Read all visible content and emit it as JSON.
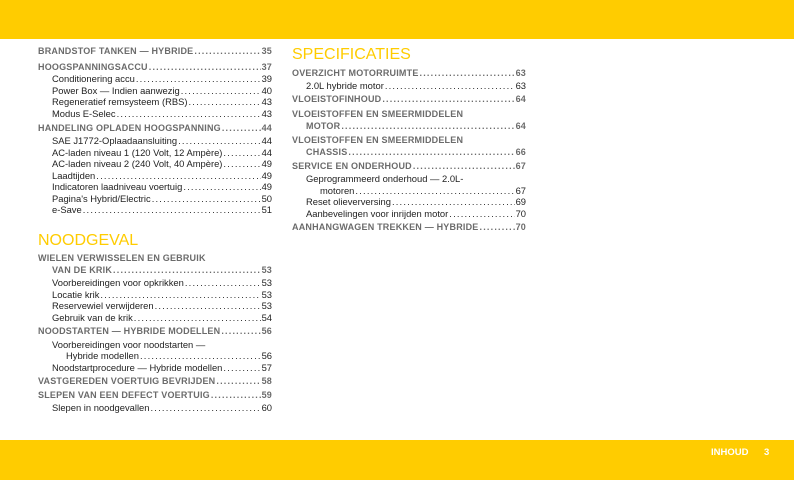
{
  "colors": {
    "accent": "#FFCC00"
  },
  "footer": {
    "label": "INHOUD",
    "page": "3"
  },
  "left": {
    "e": [
      {
        "t": "BRANDSTOF TANKEN — HYBRIDE",
        "p": "35"
      },
      {
        "t": "HOOGSPANNINGSACCU",
        "p": "37"
      },
      {
        "t": "Conditionering accu",
        "p": "39"
      },
      {
        "t": "Power Box — Indien aanwezig",
        "p": "40"
      },
      {
        "t": "Regeneratief remsysteem (RBS)",
        "p": "43"
      },
      {
        "t": "Modus E-Selec",
        "p": "43"
      },
      {
        "t": "HANDELING OPLADEN HOOGSPANNING",
        "p": "44"
      },
      {
        "t": "SAE J1772-Oplaadaansluiting",
        "p": "44"
      },
      {
        "t": "AC-laden niveau 1 (120 Volt, 12 Ampère)",
        "p": "44"
      },
      {
        "t": "AC-laden niveau 2 (240 Volt, 40 Ampère)",
        "p": "49"
      },
      {
        "t": "Laadtijden",
        "p": "49"
      },
      {
        "t": "Indicatoren laadniveau voertuig",
        "p": "49"
      },
      {
        "t": "Pagina's Hybrid/Electric",
        "p": "50"
      },
      {
        "t": "e-Save",
        "p": "51"
      }
    ],
    "section2": "NOODGEVAL",
    "f": [
      {
        "t": "WIELEN VERWISSELEN EN GEBRUIK"
      },
      {
        "t": "VAN DE KRIK",
        "p": "53"
      },
      {
        "t": "Voorbereidingen voor opkrikken",
        "p": "53"
      },
      {
        "t": "Locatie krik",
        "p": "53"
      },
      {
        "t": "Reservewiel verwijderen",
        "p": "53"
      },
      {
        "t": "Gebruik van de krik",
        "p": "54"
      },
      {
        "t": "NOODSTARTEN — HYBRIDE MODELLEN",
        "p": "56"
      },
      {
        "t": "Voorbereidingen voor noodstarten —"
      },
      {
        "t": "Hybride modellen",
        "p": "56"
      },
      {
        "t": "Noodstartprocedure — Hybride modellen",
        "p": "57"
      },
      {
        "t": "VASTGEREDEN VOERTUIG BEVRIJDEN",
        "p": "58"
      },
      {
        "t": "SLEPEN VAN EEN DEFECT VOERTUIG",
        "p": "59"
      },
      {
        "t": "Slepen in noodgevallen",
        "p": "60"
      }
    ]
  },
  "right": {
    "section": "SPECIFICATIES",
    "e": [
      {
        "t": "OVERZICHT MOTORRUIMTE",
        "p": "63"
      },
      {
        "t": "2.0L hybride motor",
        "p": "63"
      },
      {
        "t": "VLOEISTOFINHOUD",
        "p": "64"
      },
      {
        "t": "VLOEISTOFFEN EN SMEERMIDDELEN"
      },
      {
        "t": "MOTOR",
        "p": "64"
      },
      {
        "t": "VLOEISTOFFEN EN SMEERMIDDELEN"
      },
      {
        "t": "CHASSIS",
        "p": "66"
      },
      {
        "t": "SERVICE EN ONDERHOUD",
        "p": "67"
      },
      {
        "t": "Geprogrammeerd onderhoud — 2.0L-"
      },
      {
        "t": "motoren",
        "p": "67"
      },
      {
        "t": "Reset olieverversing",
        "p": "69"
      },
      {
        "t": "Aanbevelingen voor inrijden motor",
        "p": "70"
      },
      {
        "t": "AANHANGWAGEN TREKKEN — HYBRIDE",
        "p": "70"
      }
    ]
  }
}
